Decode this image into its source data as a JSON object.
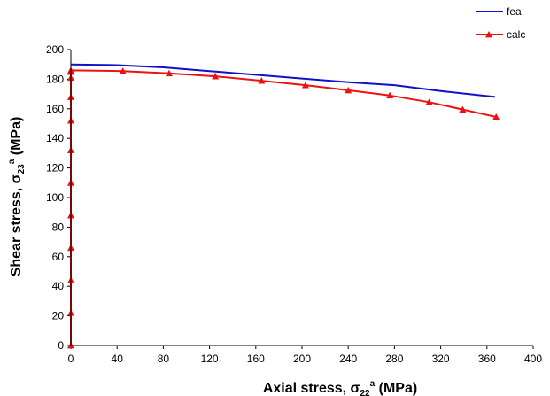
{
  "chart_data": {
    "type": "line",
    "xlabel": {
      "prefix": "Axial stress, ",
      "symbol": "σ",
      "sub": "22",
      "sup": "a",
      "suffix": " (MPa)"
    },
    "ylabel": {
      "prefix": "Shear stress, ",
      "symbol": "σ",
      "sub": "23",
      "sup": "a",
      "suffix": " (MPa)"
    },
    "xlim": [
      0,
      400
    ],
    "ylim": [
      0,
      200
    ],
    "xticks": [
      0,
      40,
      80,
      120,
      160,
      200,
      240,
      280,
      320,
      360,
      400
    ],
    "yticks": [
      0,
      20,
      40,
      60,
      80,
      100,
      120,
      140,
      160,
      180,
      200
    ],
    "grid": false,
    "legend_position": "top-right",
    "series": [
      {
        "name": "fea",
        "color": "#1010c8",
        "marker": "none",
        "x": [
          0,
          40,
          80,
          120,
          160,
          200,
          240,
          280,
          320,
          367
        ],
        "y": [
          190,
          189.5,
          188,
          185.5,
          183,
          180.5,
          178,
          176,
          172,
          168
        ]
      },
      {
        "name": "calc",
        "color": "#ee1111",
        "marker": "triangle",
        "x": [
          0,
          0,
          0,
          0,
          0,
          0,
          0,
          0,
          0,
          0,
          0,
          0,
          45,
          85,
          125,
          165,
          203,
          240,
          276,
          310,
          339,
          368
        ],
        "y": [
          0,
          22,
          44,
          66,
          88,
          110,
          132,
          152,
          168,
          181,
          185,
          186,
          185.5,
          184,
          182,
          179,
          176,
          172.5,
          169,
          164.5,
          159.5,
          154.5
        ]
      }
    ]
  }
}
